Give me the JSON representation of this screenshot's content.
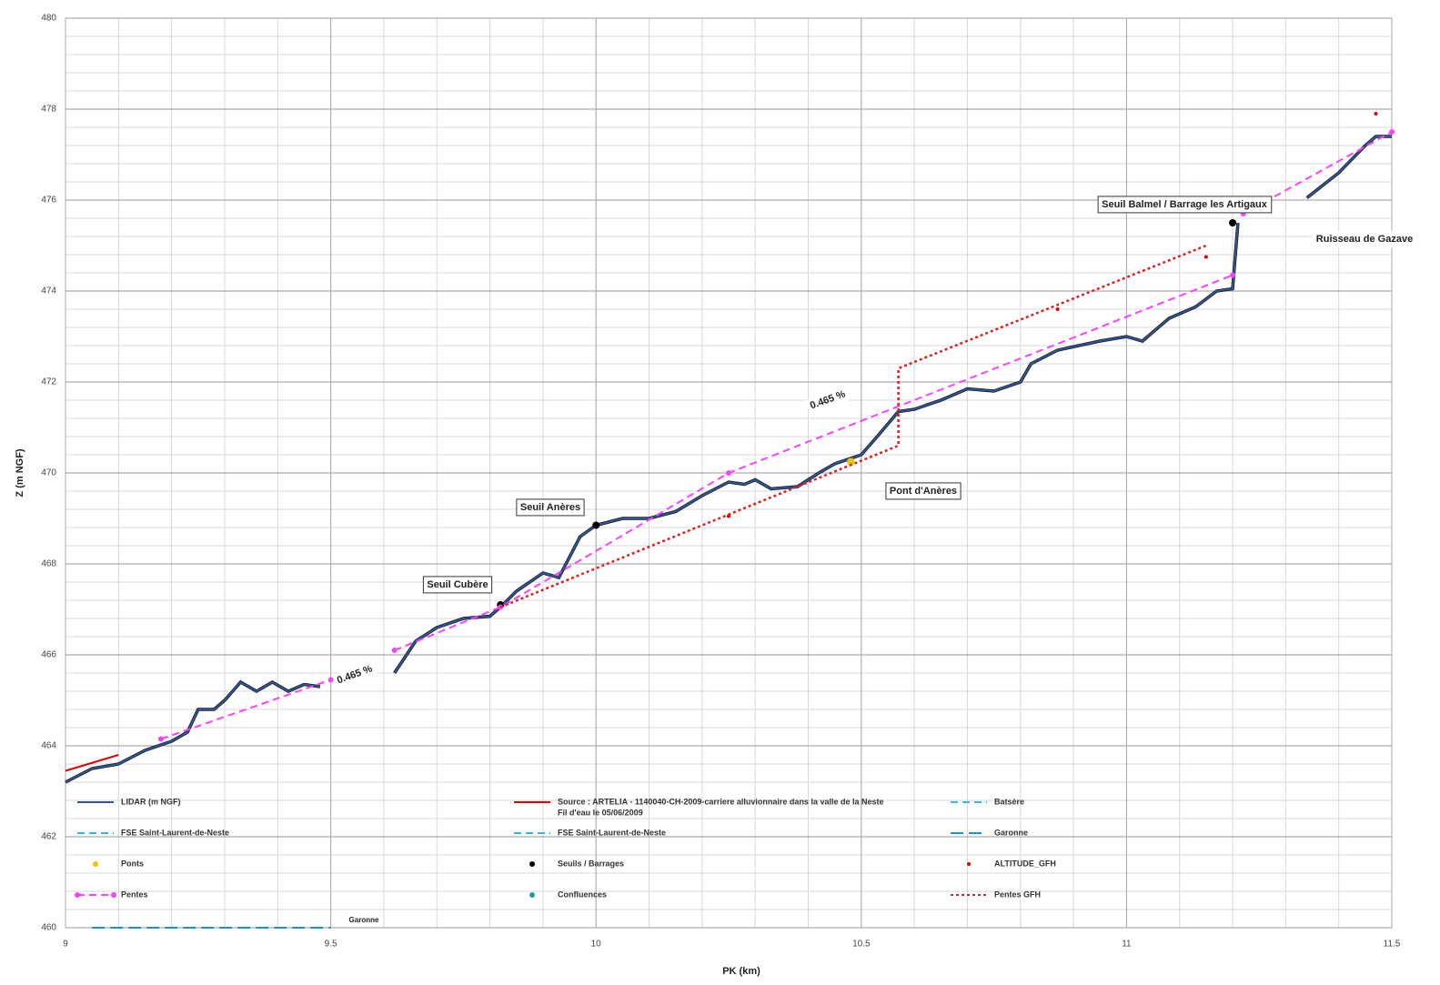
{
  "chart_data": {
    "type": "line",
    "x_label": "PK (km)",
    "y_label": "Z (m NGF)",
    "xlim": [
      9,
      11.5
    ],
    "ylim": [
      460,
      480
    ],
    "xticks": [
      9,
      9.5,
      10,
      10.5,
      11,
      11.5
    ],
    "yticks": [
      460,
      462,
      464,
      466,
      468,
      470,
      472,
      474,
      476,
      478,
      480
    ],
    "grid": true,
    "minor_grid": {
      "x": 0.1,
      "y": 0.4
    },
    "series": [
      {
        "name": "LIDAR (m NGF)",
        "color": "#2f5597",
        "style": "solid",
        "x": [
          9.0,
          9.05,
          9.1,
          9.15,
          9.2,
          9.23,
          9.25,
          9.28,
          9.3,
          9.33,
          9.36,
          9.39,
          9.42,
          9.45,
          9.48,
          null,
          9.62,
          9.66,
          9.7,
          9.75,
          9.8,
          9.82,
          9.85,
          9.9,
          9.93,
          9.97,
          10.0,
          10.05,
          10.1,
          10.15,
          10.2,
          10.25,
          10.28,
          10.3,
          10.33,
          10.38,
          10.42,
          10.45,
          10.5,
          10.53,
          10.57,
          10.6,
          10.65,
          10.7,
          10.75,
          10.8,
          10.82,
          10.87,
          10.95,
          11.0,
          11.03,
          11.08,
          11.13,
          11.17,
          11.2,
          11.21,
          null,
          11.34,
          11.4,
          11.45,
          11.47,
          11.5
        ],
        "values": [
          463.2,
          463.5,
          463.6,
          463.9,
          464.1,
          464.3,
          464.8,
          464.8,
          465.0,
          465.4,
          465.2,
          465.4,
          465.2,
          465.35,
          465.3,
          null,
          465.6,
          466.3,
          466.6,
          466.8,
          466.85,
          467.05,
          467.4,
          467.8,
          467.7,
          468.6,
          468.85,
          469.0,
          469.0,
          469.15,
          469.5,
          469.8,
          469.75,
          469.85,
          469.65,
          469.7,
          470.0,
          470.2,
          470.4,
          470.8,
          471.35,
          471.4,
          471.6,
          471.85,
          471.8,
          472.0,
          472.4,
          472.7,
          472.9,
          473.0,
          472.9,
          473.4,
          473.65,
          474.0,
          474.05,
          475.5,
          null,
          476.05,
          476.6,
          477.2,
          477.4,
          477.4
        ]
      },
      {
        "name": "Source : ARTELIA - 1140040-CH-2009-carriere alluvionnaire dans la valle de la Neste",
        "note": "Fil d'eau le 05/06/2009",
        "color": "#e00000",
        "style": "solid",
        "x": [
          9.0,
          9.1
        ],
        "values": [
          463.45,
          463.8
        ]
      },
      {
        "name": "Batsère",
        "color": "#2eb8e6",
        "style": "dashed",
        "x": [],
        "values": []
      },
      {
        "name": "FSE Saint-Laurent-de-Neste",
        "color": "#2eb8e6",
        "style": "dashed",
        "x": [],
        "values": []
      },
      {
        "name": "FSE Saint-Laurent-de-Neste",
        "color": "#2eb8e6",
        "style": "dashed",
        "x": [],
        "values": []
      },
      {
        "name": "Garonne",
        "color": "#1f8fd6",
        "style": "longdash",
        "x": [
          9.05,
          9.5
        ],
        "values": [
          460,
          460
        ]
      },
      {
        "name": "Ponts",
        "color": "#f2c200",
        "style": "marker",
        "x": [
          10.48
        ],
        "values": [
          470.25
        ]
      },
      {
        "name": "Seuils / Barrages",
        "color": "#000000",
        "style": "marker",
        "x": [
          9.82,
          10.0,
          11.2
        ],
        "values": [
          467.1,
          468.85,
          475.5
        ]
      },
      {
        "name": "ALTITUDE_GFH",
        "color": "#e00000",
        "style": "marker-small",
        "x": [
          10.25,
          10.87,
          11.15,
          11.47
        ],
        "values": [
          469.05,
          473.6,
          474.75,
          477.9
        ]
      },
      {
        "name": "Pentes",
        "color": "#ff40ff",
        "style": "dashed-marker",
        "x": [
          9.18,
          9.5,
          null,
          9.62,
          9.82,
          10.25,
          11.2,
          null,
          11.22,
          11.5
        ],
        "values": [
          464.15,
          465.45,
          null,
          466.1,
          467.05,
          470.0,
          474.35,
          null,
          475.7,
          477.5
        ]
      },
      {
        "name": "Confluences",
        "color": "#20a0a0",
        "style": "marker",
        "x": [],
        "values": []
      },
      {
        "name": "Pentes GFH",
        "color": "#e02020",
        "style": "dotted",
        "x": [
          9.82,
          10.57,
          10.57,
          11.15
        ],
        "values": [
          467.05,
          470.6,
          472.3,
          475.0
        ]
      }
    ],
    "annotations": [
      "Seuil Balmel / Barrage les Artigaux",
      "Ruisseau de Gazave",
      "Pont d'Anères",
      "Seuil Anères",
      "Seuil Cubère",
      "0.465 %",
      "0.465 %",
      "Garonne"
    ]
  }
}
